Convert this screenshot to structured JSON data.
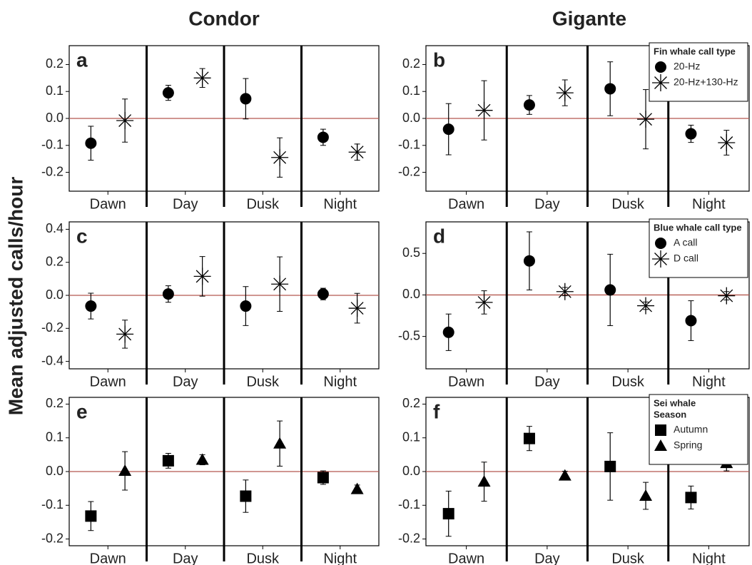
{
  "column_titles": [
    "Condor",
    "Gigante"
  ],
  "ylabel": "Mean adjusted calls/hour",
  "chart_data": [
    {
      "type": "dot",
      "label": "a",
      "categories": [
        "Dawn",
        "Day",
        "Dusk",
        "Night"
      ],
      "ylim": [
        -0.27,
        0.27
      ],
      "yticks": [
        0.2,
        0.1,
        {
          "value": 0,
          "label": "0.0"
        },
        -0.1,
        -0.2
      ],
      "hline": 0,
      "hline_color": "#b5584f",
      "series": [
        {
          "marker": "circle",
          "color": "#000000",
          "values": [
            -0.092,
            0.095,
            0.073,
            -0.07
          ],
          "errors": [
            0.063,
            0.028,
            0.075,
            0.03
          ]
        },
        {
          "marker": "star",
          "color": "#000000",
          "values": [
            -0.008,
            0.15,
            -0.145,
            -0.125
          ],
          "errors": [
            0.08,
            0.035,
            0.073,
            0.03
          ]
        }
      ]
    },
    {
      "type": "dot",
      "label": "b",
      "categories": [
        "Dawn",
        "Day",
        "Dusk",
        "Night"
      ],
      "ylim": [
        -0.27,
        0.27
      ],
      "yticks": [
        0.2,
        0.1,
        {
          "value": 0,
          "label": "0.0"
        },
        -0.1,
        -0.2
      ],
      "hline": 0,
      "hline_color": "#b5584f",
      "legend": "top-right",
      "legend_title": [
        "Fin whale call type"
      ],
      "series": [
        {
          "name": "20-Hz",
          "marker": "circle",
          "color": "#000000",
          "values": [
            -0.04,
            0.05,
            0.11,
            -0.057
          ],
          "errors": [
            0.095,
            0.035,
            0.1,
            0.032
          ]
        },
        {
          "name": "20-Hz+130-Hz",
          "marker": "star",
          "color": "#000000",
          "values": [
            0.03,
            0.095,
            -0.003,
            -0.09
          ],
          "errors": [
            0.11,
            0.048,
            0.11,
            0.046
          ]
        }
      ]
    },
    {
      "type": "dot",
      "label": "c",
      "categories": [
        "Dawn",
        "Day",
        "Dusk",
        "Night"
      ],
      "ylim": [
        -0.445,
        0.445
      ],
      "yticks": [
        0.4,
        0.2,
        {
          "value": 0,
          "label": "0.0"
        },
        -0.2,
        -0.4
      ],
      "hline": 0,
      "hline_color": "#b5584f",
      "series": [
        {
          "marker": "circle",
          "color": "#000000",
          "values": [
            -0.065,
            0.008,
            -0.065,
            0.008
          ],
          "errors": [
            0.078,
            0.05,
            0.118,
            0.035
          ]
        },
        {
          "marker": "star",
          "color": "#000000",
          "values": [
            -0.235,
            0.115,
            0.068,
            -0.078
          ],
          "errors": [
            0.085,
            0.12,
            0.165,
            0.09
          ]
        }
      ]
    },
    {
      "type": "dot",
      "label": "d",
      "categories": [
        "Dawn",
        "Day",
        "Dusk",
        "Night"
      ],
      "ylim": [
        -0.89,
        0.88
      ],
      "yticks": [
        0.5,
        {
          "value": 0,
          "label": "0.0"
        },
        -0.5
      ],
      "hline": 0,
      "hline_color": "#b5584f",
      "legend": "top-right",
      "legend_title": [
        "Blue whale call type"
      ],
      "series": [
        {
          "name": "A call",
          "marker": "circle",
          "color": "#000000",
          "values": [
            -0.45,
            0.41,
            0.06,
            -0.31
          ],
          "errors": [
            0.22,
            0.35,
            0.43,
            0.24
          ]
        },
        {
          "name": "D call",
          "marker": "star",
          "color": "#000000",
          "values": [
            -0.09,
            0.04,
            -0.13,
            -0.01
          ],
          "errors": [
            0.14,
            0.05,
            0.045,
            0.05
          ]
        }
      ]
    },
    {
      "type": "dot",
      "label": "e",
      "categories": [
        "Dawn",
        "Day",
        "Dusk",
        "Night"
      ],
      "ylim": [
        -0.22,
        0.22
      ],
      "yticks": [
        0.2,
        0.1,
        {
          "value": 0,
          "label": "0.0"
        },
        -0.1,
        -0.2
      ],
      "hline": 0,
      "hline_color": "#b5584f",
      "series": [
        {
          "marker": "square",
          "color": "#000000",
          "values": [
            -0.132,
            0.032,
            -0.073,
            -0.018
          ],
          "errors": [
            0.043,
            0.022,
            0.048,
            0.02
          ]
        },
        {
          "marker": "triangle",
          "color": "#000000",
          "values": [
            0.002,
            0.035,
            0.083,
            -0.052
          ],
          "errors": [
            0.057,
            0.015,
            0.067,
            0.012
          ]
        }
      ]
    },
    {
      "type": "dot",
      "label": "f",
      "categories": [
        "Dawn",
        "Day",
        "Dusk",
        "Night"
      ],
      "ylim": [
        -0.22,
        0.22
      ],
      "yticks": [
        0.2,
        0.1,
        {
          "value": 0,
          "label": "0.0"
        },
        -0.1,
        -0.2
      ],
      "hline": 0,
      "hline_color": "#b5584f",
      "legend": "top-right",
      "legend_title": [
        "Sei whale",
        "Season"
      ],
      "series": [
        {
          "name": "Autumn",
          "marker": "square",
          "color": "#000000",
          "values": [
            -0.125,
            0.098,
            0.015,
            -0.077
          ],
          "errors": [
            0.067,
            0.036,
            0.1,
            0.034
          ]
        },
        {
          "name": "Spring",
          "marker": "triangle",
          "color": "#000000",
          "values": [
            -0.03,
            -0.012,
            -0.072,
            0.025
          ],
          "errors": [
            0.058,
            0.013,
            0.04,
            0.023
          ]
        }
      ]
    }
  ]
}
